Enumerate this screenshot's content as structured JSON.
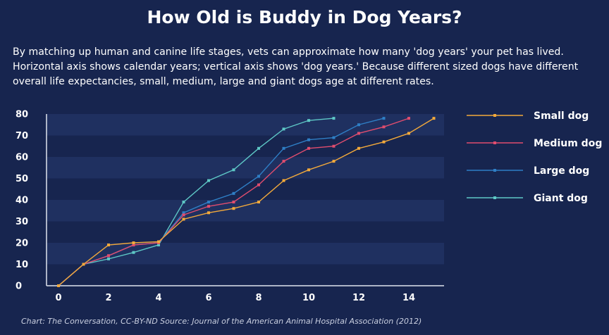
{
  "title": "How Old is Buddy in Dog Years?",
  "subtitle": "By matching up human and canine life stages, vets can approximate how many 'dog years' your pet has lived. Horizontal axis shows calendar years; vertical axis shows 'dog years.' Because different sized dogs have different overall life expectancies, small, medium, large and giant dogs age at different rates.",
  "source": "Chart: The Conversation, CC-BY-ND Source: Journal of the American Animal Hospital Association (2012)",
  "colors": {
    "background": "#17254f",
    "band": "#1f3060",
    "axis": "#dfe4ee"
  },
  "chart_data": {
    "type": "line",
    "xlim": [
      0,
      15
    ],
    "ylim": [
      0,
      80
    ],
    "x_ticks": [
      0,
      2,
      4,
      6,
      8,
      10,
      12,
      14
    ],
    "y_ticks": [
      0,
      10,
      20,
      30,
      40,
      50,
      60,
      70,
      80
    ],
    "grid": "horizontal bands",
    "legend_position": "right",
    "series": [
      {
        "name": "Small dog",
        "color": "#f2a93b",
        "x": [
          0,
          1,
          2,
          3,
          4,
          5,
          6,
          7,
          8,
          9,
          10,
          11,
          12,
          13,
          14,
          15
        ],
        "y": [
          0,
          10,
          19,
          20,
          20.5,
          31,
          34,
          36,
          39,
          49,
          54,
          58,
          64,
          67,
          71,
          78
        ]
      },
      {
        "name": "Medium dog",
        "color": "#e04d6e",
        "x": [
          0,
          1,
          2,
          3,
          4,
          5,
          6,
          7,
          8,
          9,
          10,
          11,
          12,
          13,
          14
        ],
        "y": [
          0,
          10,
          14,
          19,
          20,
          33,
          37,
          39,
          47,
          58,
          64,
          65,
          71,
          74,
          78
        ]
      },
      {
        "name": "Large dog",
        "color": "#2f7fc6",
        "x": [
          0,
          1,
          2,
          3,
          4,
          5,
          6,
          7,
          8,
          9,
          10,
          11,
          12,
          13
        ],
        "y": [
          0,
          10,
          14,
          19,
          20,
          34,
          39,
          43,
          51,
          64,
          68,
          69,
          75,
          78
        ]
      },
      {
        "name": "Giant dog",
        "color": "#5ec8c6",
        "x": [
          0,
          1,
          2,
          3,
          4,
          5,
          6,
          7,
          8,
          9,
          10,
          11
        ],
        "y": [
          0,
          10,
          12.5,
          15.5,
          19,
          39,
          49,
          54,
          64,
          73,
          77,
          78
        ]
      }
    ]
  }
}
